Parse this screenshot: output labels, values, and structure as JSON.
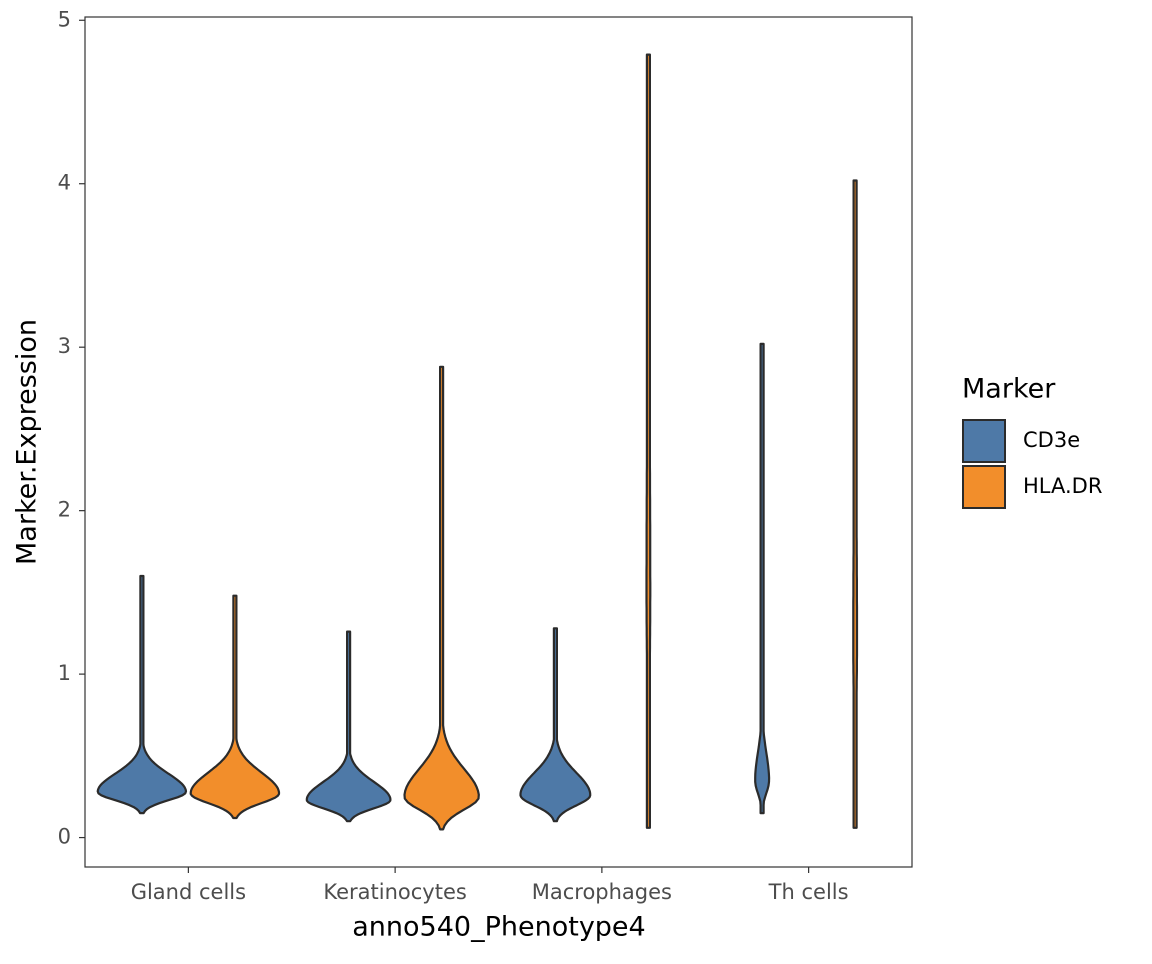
{
  "chart_data": {
    "type": "violin",
    "x_label": "anno540_Phenotype4",
    "y_label": "Marker.Expression",
    "legend_title": "Marker",
    "legend_position": "right",
    "categories": [
      "Gland cells",
      "Keratinocytes",
      "Macrophages",
      "Th cells"
    ],
    "series": [
      {
        "name": "CD3e",
        "color": "#4e79a7",
        "min": [
          0.15,
          0.1,
          0.1,
          0.15
        ],
        "peak": [
          0.28,
          0.23,
          0.26,
          0.35
        ],
        "max": [
          1.6,
          1.26,
          1.28,
          3.02
        ],
        "peak_density": [
          0.95,
          0.9,
          0.75,
          0.15
        ]
      },
      {
        "name": "HLA.DR",
        "color": "#f28e2b",
        "min": [
          0.12,
          0.05,
          0.06,
          0.06
        ],
        "peak": [
          0.27,
          0.25,
          1.5,
          1.2
        ],
        "max": [
          1.48,
          2.88,
          4.79,
          4.02
        ],
        "peak_density": [
          0.95,
          0.8,
          0.04,
          0.04
        ]
      }
    ],
    "ylim": [
      -0.18,
      5.02
    ],
    "yticks": [
      0,
      1,
      2,
      3,
      4,
      5
    ],
    "grid": false
  }
}
